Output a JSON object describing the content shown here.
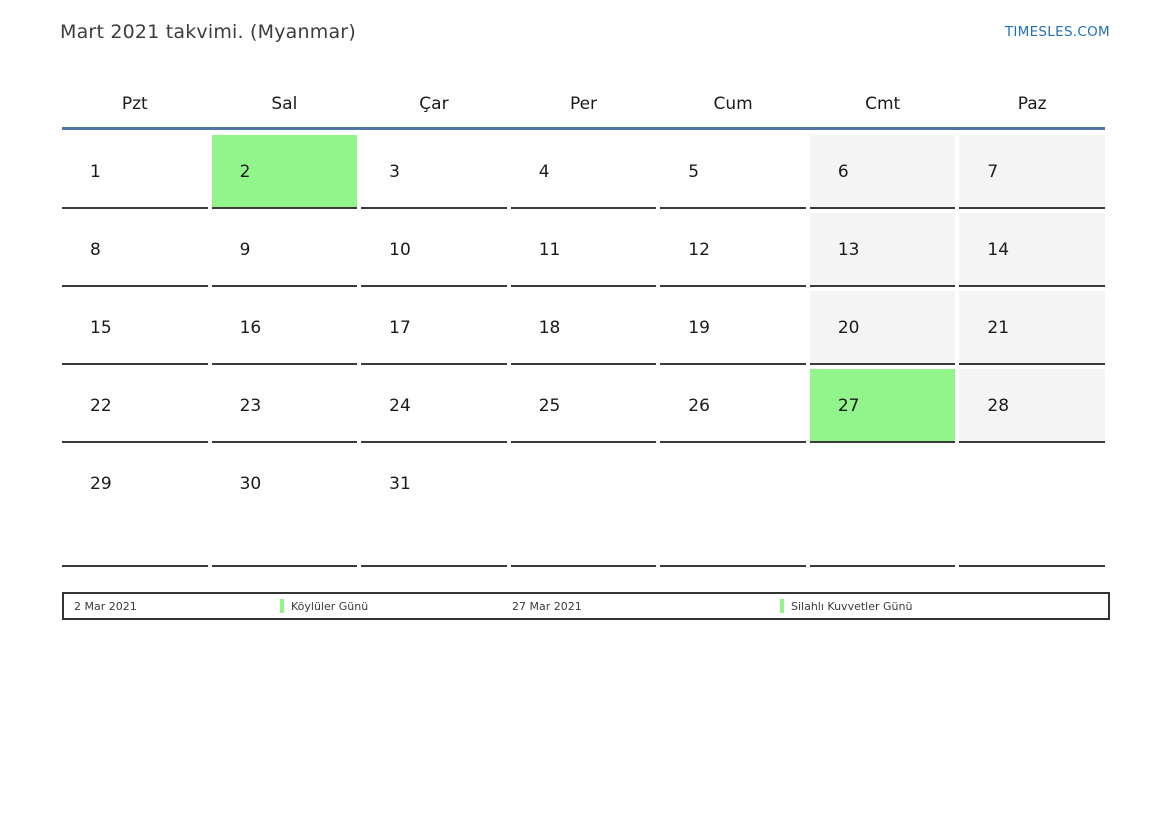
{
  "page": {
    "title": "Mart 2021 takvimi. (Myanmar)",
    "site_link": "TIMESLES.COM"
  },
  "calendar": {
    "month": "Mart 2021",
    "country": "Myanmar",
    "weekday_headers": [
      "Pzt",
      "Sal",
      "Çar",
      "Per",
      "Cum",
      "Cmt",
      "Paz"
    ],
    "weeks": [
      [
        {
          "day": "1"
        },
        {
          "day": "2",
          "holiday": true
        },
        {
          "day": "3"
        },
        {
          "day": "4"
        },
        {
          "day": "5"
        },
        {
          "day": "6",
          "weekend": true
        },
        {
          "day": "7",
          "weekend": true
        }
      ],
      [
        {
          "day": "8"
        },
        {
          "day": "9"
        },
        {
          "day": "10"
        },
        {
          "day": "11"
        },
        {
          "day": "12"
        },
        {
          "day": "13",
          "weekend": true
        },
        {
          "day": "14",
          "weekend": true
        }
      ],
      [
        {
          "day": "15"
        },
        {
          "day": "16"
        },
        {
          "day": "17"
        },
        {
          "day": "18"
        },
        {
          "day": "19"
        },
        {
          "day": "20",
          "weekend": true
        },
        {
          "day": "21",
          "weekend": true
        }
      ],
      [
        {
          "day": "22"
        },
        {
          "day": "23"
        },
        {
          "day": "24"
        },
        {
          "day": "25"
        },
        {
          "day": "26"
        },
        {
          "day": "27",
          "holiday": true
        },
        {
          "day": "28",
          "weekend": true
        }
      ],
      [
        {
          "day": "29"
        },
        {
          "day": "30"
        },
        {
          "day": "31"
        },
        {
          "day": ""
        },
        {
          "day": ""
        },
        {
          "day": ""
        },
        {
          "day": ""
        }
      ]
    ],
    "highlighted_days": [
      "2",
      "27"
    ]
  },
  "legend": {
    "items": [
      {
        "date": "2 Mar 2021",
        "name": "Köylüler Günü"
      },
      {
        "date": "27 Mar 2021",
        "name": "Silahlı Kuvvetler Günü"
      }
    ]
  },
  "colors": {
    "holiday_green": "#92f58b",
    "weekend_gray": "#f4f4f4",
    "header_line_blue": "#4f75a0",
    "link_blue": "#2470b8",
    "cell_border": "#3a3a3a"
  }
}
